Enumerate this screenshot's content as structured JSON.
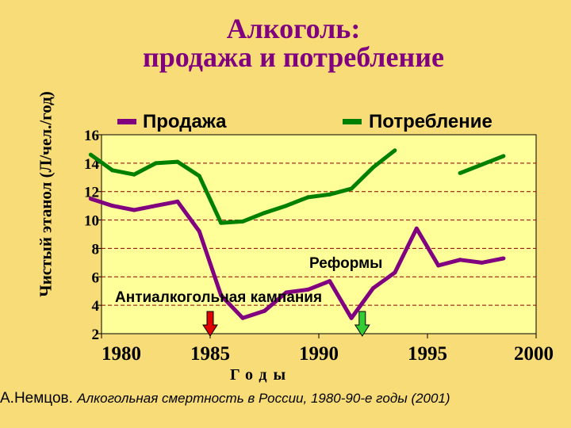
{
  "chart_data": {
    "type": "line",
    "title_line1": "Алкоголь:",
    "title_line2": "продажа и потребление",
    "xlabel": "Годы",
    "ylabel": "Чистый этанол (Л/чел./год)",
    "xlim": [
      1980,
      2000
    ],
    "ylim": [
      2,
      16
    ],
    "x_ticks": [
      1980,
      1985,
      1990,
      1995,
      2000
    ],
    "y_ticks": [
      2,
      4,
      6,
      8,
      10,
      12,
      14,
      16
    ],
    "grid": true,
    "legend": "top",
    "series": [
      {
        "name": "Продажа",
        "color": "#800080",
        "points": [
          [
            1979.5,
            11.5
          ],
          [
            1980.5,
            11.0
          ],
          [
            1981.5,
            10.7
          ],
          [
            1982.5,
            11.0
          ],
          [
            1983.5,
            11.3
          ],
          [
            1984.5,
            9.2
          ],
          [
            1985.5,
            4.7
          ],
          [
            1986.5,
            3.1
          ],
          [
            1987.5,
            3.6
          ],
          [
            1988.5,
            4.9
          ],
          [
            1989.5,
            5.1
          ],
          [
            1990.5,
            5.7
          ],
          [
            1991.5,
            3.1
          ],
          [
            1992.5,
            5.2
          ],
          [
            1993.5,
            6.3
          ],
          [
            1994.5,
            9.4
          ],
          [
            1995.5,
            6.8
          ],
          [
            1996.5,
            7.2
          ],
          [
            1997.5,
            7.0
          ],
          [
            1998.5,
            7.3
          ]
        ]
      },
      {
        "name": "Потребление",
        "color": "#008000",
        "segments": [
          [
            [
              1979.5,
              14.6
            ],
            [
              1980.5,
              13.5
            ],
            [
              1981.5,
              13.2
            ],
            [
              1982.5,
              14.0
            ],
            [
              1983.5,
              14.1
            ],
            [
              1984.5,
              13.1
            ],
            [
              1985.5,
              9.8
            ],
            [
              1986.5,
              9.9
            ],
            [
              1987.5,
              10.5
            ],
            [
              1988.5,
              11.0
            ],
            [
              1989.5,
              11.6
            ],
            [
              1990.5,
              11.8
            ],
            [
              1991.5,
              12.2
            ],
            [
              1992.5,
              13.7
            ],
            [
              1993.5,
              14.9
            ]
          ],
          [
            [
              1996.5,
              13.3
            ],
            [
              1997.5,
              13.9
            ],
            [
              1998.5,
              14.5
            ]
          ]
        ]
      }
    ],
    "annotations": [
      {
        "text": "Реформы",
        "x": 1992
      },
      {
        "text": "Антиалкогольная кампания",
        "x": 1985
      }
    ],
    "markers": [
      {
        "x": 1985,
        "color": "#e00000"
      },
      {
        "x": 1992,
        "color": "#33cc33"
      }
    ]
  },
  "source": {
    "author": "А.Немцов.",
    "work": "Алкогольная смертность в России, 1980-90-е годы (2001)"
  }
}
